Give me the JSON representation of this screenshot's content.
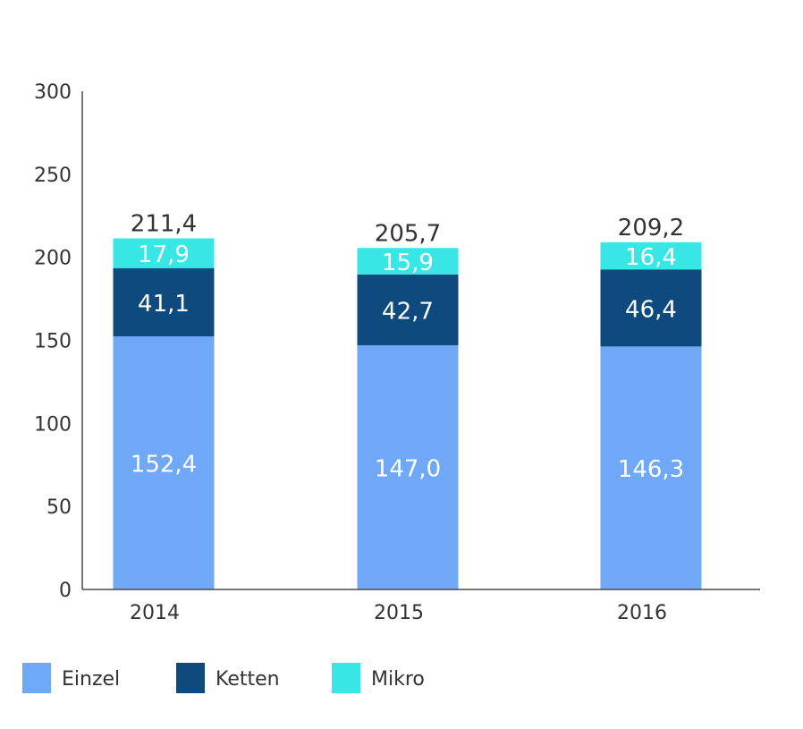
{
  "chart_data": {
    "type": "bar",
    "stacked": true,
    "categories": [
      "2014",
      "2015",
      "2016"
    ],
    "series": [
      {
        "name": "Einzel",
        "values": [
          152.4,
          147.0,
          146.3
        ],
        "labels": [
          "152,4",
          "147,0",
          "146,3"
        ],
        "color": "#6EA8F7",
        "label_color": "#ffffff"
      },
      {
        "name": "Ketten",
        "values": [
          41.1,
          42.7,
          46.4
        ],
        "labels": [
          "41,1",
          "42,7",
          "46,4"
        ],
        "color": "#0E4A7E",
        "label_color": "#ffffff"
      },
      {
        "name": "Mikro",
        "values": [
          17.9,
          15.9,
          16.4
        ],
        "labels": [
          "17,9",
          "15,9",
          "16,4"
        ],
        "color": "#38E6E6",
        "label_color": "#ffffff"
      }
    ],
    "totals": [
      "211,4",
      "205,7",
      "209,2"
    ],
    "ylim": [
      0,
      300
    ],
    "yticks": [
      0,
      50,
      100,
      150,
      200,
      250,
      300
    ],
    "xlabel": "",
    "ylabel": "",
    "grid": false,
    "legend_position": "bottom-left",
    "axis_color": "#4A4A4A"
  }
}
